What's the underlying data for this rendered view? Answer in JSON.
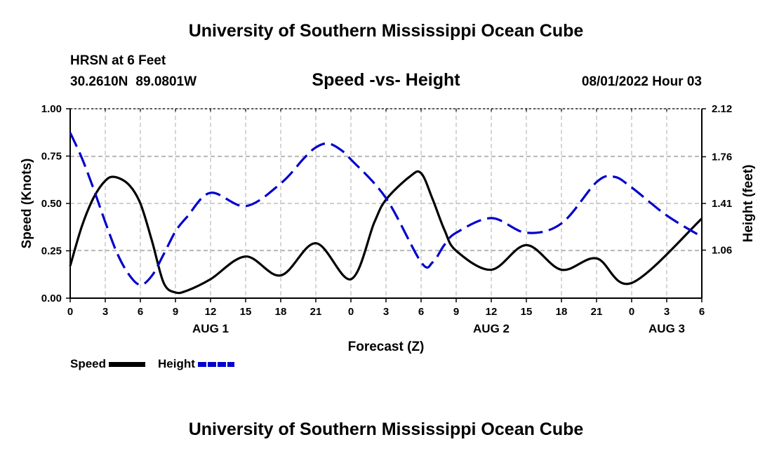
{
  "header": {
    "title": "University of Southern Mississippi Ocean Cube",
    "station": "HRSN at 6 Feet",
    "lat": "30.2610N",
    "lon": "89.0801W",
    "subtitle": "Speed -vs- Height",
    "datetime": "08/01/2022 Hour 03"
  },
  "footer": {
    "title": "University of Southern Mississippi Ocean Cube"
  },
  "legend": {
    "speed_label": "Speed",
    "height_label": "Height"
  },
  "chart_data": {
    "type": "line",
    "title": "Speed -vs- Height",
    "xlabel": "Forecast (Z)",
    "ylabel_left": "Speed (Knots)",
    "ylabel_right": "Height (feet)",
    "xlim": [
      0,
      54
    ],
    "ylim_left": [
      0,
      1
    ],
    "ylim_right": [
      0.7,
      2.12
    ],
    "grid": true,
    "x_ticks": [
      0,
      3,
      6,
      9,
      12,
      15,
      18,
      21,
      24,
      27,
      30,
      33,
      36,
      39,
      42,
      45,
      48,
      51,
      54
    ],
    "x_tick_labels": [
      "0",
      "3",
      "6",
      "9",
      "12",
      "15",
      "18",
      "21",
      "0",
      "3",
      "6",
      "9",
      "12",
      "15",
      "18",
      "21",
      "0",
      "3",
      "6"
    ],
    "left_ticks": [
      0,
      0.25,
      0.5,
      0.75,
      1.0
    ],
    "left_tick_labels": [
      "0.00",
      "0.25",
      "0.50",
      "0.75",
      "1.00"
    ],
    "right_ticks": [
      1.06,
      1.41,
      1.76,
      2.12
    ],
    "right_tick_labels": [
      "1.06",
      "1.41",
      "1.76",
      "2.12"
    ],
    "date_labels": [
      {
        "x": 12,
        "label": "AUG 1"
      },
      {
        "x": 36,
        "label": "AUG 2"
      },
      {
        "x": 51,
        "label": "AUG 3"
      }
    ],
    "series": [
      {
        "name": "Speed",
        "axis": "left",
        "color": "#000000",
        "style": "solid",
        "x": [
          0,
          1,
          2,
          3,
          3.8,
          5,
          6,
          7,
          8,
          9,
          10,
          12,
          15,
          18,
          21,
          24,
          26,
          27,
          29,
          30,
          31,
          32,
          33,
          36,
          39,
          42,
          45,
          48,
          54
        ],
        "y": [
          0.17,
          0.38,
          0.53,
          0.62,
          0.64,
          0.6,
          0.5,
          0.3,
          0.08,
          0.03,
          0.04,
          0.1,
          0.22,
          0.12,
          0.29,
          0.1,
          0.4,
          0.52,
          0.64,
          0.66,
          0.52,
          0.36,
          0.25,
          0.15,
          0.28,
          0.15,
          0.21,
          0.08,
          0.42
        ]
      },
      {
        "name": "Height",
        "axis": "right",
        "color": "#0000cc",
        "style": "dashed",
        "x": [
          0,
          1,
          2,
          3,
          4,
          5,
          6,
          7,
          8,
          9,
          10,
          12,
          15,
          18,
          20,
          21,
          22,
          23,
          24,
          27,
          30,
          31,
          32,
          33,
          36,
          39,
          42,
          45,
          46.5,
          48,
          51,
          54
        ],
        "y": [
          1.94,
          1.75,
          1.52,
          1.27,
          1.04,
          0.88,
          0.8,
          0.87,
          1.03,
          1.2,
          1.31,
          1.49,
          1.39,
          1.56,
          1.75,
          1.83,
          1.86,
          1.82,
          1.74,
          1.45,
          0.97,
          0.97,
          1.1,
          1.19,
          1.3,
          1.19,
          1.26,
          1.57,
          1.61,
          1.53,
          1.32,
          1.16
        ]
      }
    ]
  }
}
